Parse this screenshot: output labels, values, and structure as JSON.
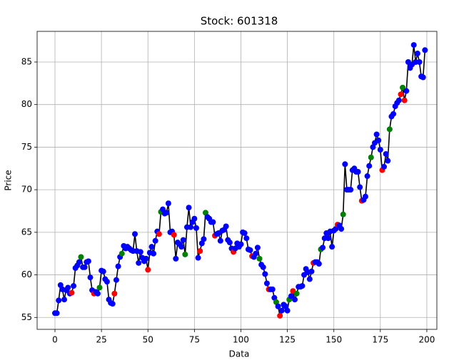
{
  "chart_data": {
    "type": "line",
    "title": "Stock: 601318",
    "x_label": "Data",
    "y_label": "Price",
    "x": [
      0,
      1,
      2,
      3,
      4,
      5,
      6,
      7,
      8,
      9,
      10,
      11,
      12,
      13,
      14,
      15,
      16,
      17,
      18,
      19,
      20,
      21,
      22,
      23,
      24,
      25,
      26,
      27,
      28,
      29,
      30,
      31,
      32,
      33,
      34,
      35,
      36,
      37,
      38,
      39,
      40,
      41,
      42,
      43,
      44,
      45,
      46,
      47,
      48,
      49,
      50,
      51,
      52,
      53,
      54,
      55,
      56,
      57,
      58,
      59,
      60,
      61,
      62,
      63,
      64,
      65,
      66,
      67,
      68,
      69,
      70,
      71,
      72,
      73,
      74,
      75,
      76,
      77,
      78,
      79,
      80,
      81,
      82,
      83,
      84,
      85,
      86,
      87,
      88,
      89,
      90,
      91,
      92,
      93,
      94,
      95,
      96,
      97,
      98,
      99,
      100,
      101,
      102,
      103,
      104,
      105,
      106,
      107,
      108,
      109,
      110,
      111,
      112,
      113,
      114,
      115,
      116,
      117,
      118,
      119,
      120,
      121,
      122,
      123,
      124,
      125,
      126,
      127,
      128,
      129,
      130,
      131,
      132,
      133,
      134,
      135,
      136,
      137,
      138,
      139,
      140,
      141,
      142,
      143,
      144,
      145,
      146,
      147,
      148,
      149,
      150,
      151,
      152,
      153,
      154,
      155,
      156,
      157,
      158,
      159,
      160,
      161,
      162,
      163,
      164,
      165,
      166,
      167,
      168,
      169,
      170,
      171,
      172,
      173,
      174,
      175,
      176,
      177,
      178,
      179,
      180,
      181,
      182,
      183,
      184,
      185,
      186,
      187,
      188,
      189,
      190,
      191,
      192,
      193,
      194,
      195,
      196,
      197,
      198,
      199
    ],
    "values": [
      55.5,
      55.5,
      57,
      58.8,
      58.3,
      57.1,
      58.2,
      58.5,
      57.8,
      57.9,
      58.7,
      60.8,
      61.1,
      61.5,
      62.1,
      60.9,
      60.9,
      61.5,
      61.6,
      59.7,
      58.2,
      57.8,
      58,
      57.8,
      58.5,
      60.5,
      60.4,
      59.5,
      59.2,
      57.1,
      56.7,
      56.6,
      57.8,
      59.4,
      61,
      62.1,
      62.5,
      63.4,
      63.1,
      63.3,
      63.1,
      62.9,
      62.8,
      64.8,
      62.8,
      61.4,
      62.7,
      62,
      61.6,
      61.9,
      60.6,
      62.6,
      63.3,
      62.5,
      64,
      65.1,
      64.8,
      67.4,
      67.7,
      67.2,
      67.3,
      68.4,
      65,
      65.1,
      64.7,
      61.9,
      63.8,
      63.6,
      63.3,
      64.1,
      62.4,
      65.6,
      67.9,
      65.6,
      66.2,
      66.6,
      65.5,
      62,
      62.8,
      63.7,
      64.2,
      67.3,
      66.8,
      66.6,
      66.2,
      66.2,
      64.6,
      64.8,
      64.9,
      64,
      65.2,
      65.3,
      65.7,
      64.1,
      63.8,
      63.1,
      62.7,
      63.1,
      63.7,
      63.3,
      63.6,
      65,
      64.9,
      64.3,
      63,
      62.9,
      62.2,
      62.1,
      62.5,
      63.2,
      61.9,
      61.2,
      60.9,
      60.1,
      59,
      58.3,
      58.3,
      58.3,
      57.3,
      56.8,
      56.3,
      55.2,
      55.8,
      56.5,
      56.3,
      55.8,
      57.1,
      57.5,
      58.1,
      57.1,
      57.8,
      58.6,
      58.6,
      58.7,
      60,
      60.7,
      60.3,
      59.5,
      60.4,
      61.4,
      61.5,
      61.5,
      61.3,
      63,
      63.2,
      64.3,
      64.9,
      64.3,
      65.1,
      63.3,
      65.2,
      65.4,
      65.9,
      65.8,
      65.4,
      67.1,
      73,
      70,
      70,
      70,
      72.3,
      72.5,
      72.1,
      72.1,
      70.3,
      68.7,
      68.8,
      69.2,
      71.6,
      72.8,
      73.8,
      75,
      75.5,
      76.5,
      75.8,
      74.7,
      72.3,
      72.7,
      74.2,
      73.4,
      77.1,
      78.6,
      78.9,
      79.8,
      80.2,
      80.5,
      81.2,
      82,
      80.5,
      81.6,
      85,
      84.3,
      84.7,
      87,
      85,
      86,
      85,
      83.3,
      83.2,
      86.4
    ],
    "line_color": "#000000",
    "marker_colors": [
      "blue",
      "blue",
      "blue",
      "blue",
      "blue",
      "blue",
      "blue",
      "blue",
      "blue",
      "red",
      "blue",
      "blue",
      "blue",
      "blue",
      "green",
      "blue",
      "blue",
      "blue",
      "blue",
      "blue",
      "blue",
      "red",
      "blue",
      "blue",
      "green",
      "blue",
      "blue",
      "blue",
      "blue",
      "blue",
      "blue",
      "blue",
      "red",
      "blue",
      "blue",
      "blue",
      "green",
      "blue",
      "blue",
      "blue",
      "blue",
      "blue",
      "blue",
      "blue",
      "blue",
      "blue",
      "blue",
      "blue",
      "blue",
      "blue",
      "red",
      "blue",
      "blue",
      "blue",
      "blue",
      "blue",
      "red",
      "green",
      "blue",
      "blue",
      "blue",
      "blue",
      "blue",
      "blue",
      "red",
      "blue",
      "blue",
      "blue",
      "blue",
      "blue",
      "green",
      "blue",
      "blue",
      "blue",
      "blue",
      "blue",
      "blue",
      "blue",
      "red",
      "blue",
      "blue",
      "green",
      "blue",
      "blue",
      "blue",
      "blue",
      "red",
      "blue",
      "blue",
      "blue",
      "blue",
      "blue",
      "blue",
      "blue",
      "blue",
      "blue",
      "red",
      "blue",
      "blue",
      "blue",
      "blue",
      "blue",
      "blue",
      "blue",
      "blue",
      "blue",
      "red",
      "blue",
      "blue",
      "blue",
      "green",
      "blue",
      "blue",
      "blue",
      "blue",
      "red",
      "blue",
      "blue",
      "blue",
      "green",
      "blue",
      "red",
      "blue",
      "blue",
      "blue",
      "blue",
      "green",
      "blue",
      "red",
      "blue",
      "green",
      "blue",
      "blue",
      "blue",
      "blue",
      "blue",
      "blue",
      "blue",
      "blue",
      "red",
      "blue",
      "blue",
      "blue",
      "green",
      "blue",
      "blue",
      "blue",
      "blue",
      "blue",
      "blue",
      "blue",
      "blue",
      "red",
      "blue",
      "blue",
      "green",
      "blue",
      "blue",
      "blue",
      "blue",
      "blue",
      "blue",
      "blue",
      "blue",
      "blue",
      "red",
      "blue",
      "blue",
      "blue",
      "blue",
      "green",
      "blue",
      "blue",
      "blue",
      "blue",
      "blue",
      "red",
      "blue",
      "blue",
      "blue",
      "green",
      "blue",
      "blue",
      "blue",
      "blue",
      "blue",
      "red",
      "green",
      "red",
      "blue",
      "blue",
      "blue",
      "blue",
      "blue",
      "blue",
      "blue",
      "blue",
      "blue",
      "blue",
      "blue"
    ],
    "xlim": [
      -9.6,
      205.4
    ],
    "ylim": [
      53.6,
      88.6
    ],
    "xticks": [
      0,
      25,
      50,
      75,
      100,
      125,
      150,
      175,
      200
    ],
    "yticks": [
      55,
      60,
      65,
      70,
      75,
      80,
      85
    ],
    "grid": true
  }
}
